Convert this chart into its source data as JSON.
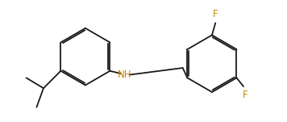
{
  "bg_color": "#ffffff",
  "line_color": "#1a1a1a",
  "color_F": "#cc8800",
  "color_N": "#cc8800",
  "lw": 1.3,
  "fs": 8.5,
  "figsize": [
    3.56,
    1.51
  ],
  "dpi": 100,
  "xlim": [
    0.0,
    3.56
  ],
  "ylim": [
    0.0,
    1.51
  ]
}
